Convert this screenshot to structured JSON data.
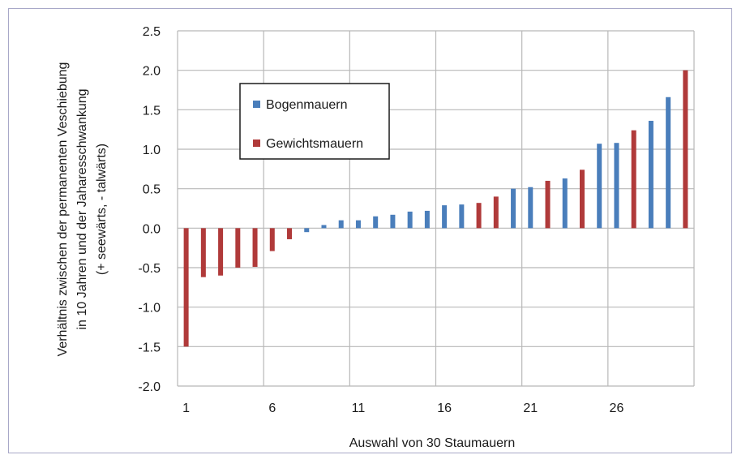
{
  "chart_data": {
    "type": "bar",
    "title": "",
    "xlabel": "Auswahl von 30 Staumauern",
    "ylabel_lines": [
      "Verhältnis zwischen der permanenten Veschiebung",
      "in 10 Jahren und der Jaharesschwankung",
      "(+ seewärts, - talwärts)"
    ],
    "xlim": [
      0,
      30
    ],
    "ylim": [
      -2.0,
      2.5
    ],
    "y_ticks": [
      "2.5",
      "2.0",
      "1.5",
      "1.0",
      "0.5",
      "0.0",
      "-0.5",
      "-1.0",
      "-1.5",
      "-2.0"
    ],
    "x_ticks": [
      "1",
      "6",
      "11",
      "16",
      "21",
      "26"
    ],
    "grid": true,
    "legend_position": "upper-left inside plot",
    "colors": {
      "Bogenmauern": "#4a7ebb",
      "Gewichtsmauern": "#b03a3a"
    },
    "legend": [
      "Bogenmauern",
      "Gewichtsmauern"
    ],
    "bars": [
      {
        "x": 1,
        "value": -1.5,
        "series": "Gewichtsmauern"
      },
      {
        "x": 2,
        "value": -0.62,
        "series": "Gewichtsmauern"
      },
      {
        "x": 3,
        "value": -0.6,
        "series": "Gewichtsmauern"
      },
      {
        "x": 4,
        "value": -0.5,
        "series": "Gewichtsmauern"
      },
      {
        "x": 5,
        "value": -0.49,
        "series": "Gewichtsmauern"
      },
      {
        "x": 6,
        "value": -0.29,
        "series": "Gewichtsmauern"
      },
      {
        "x": 7,
        "value": -0.14,
        "series": "Gewichtsmauern"
      },
      {
        "x": 8,
        "value": -0.05,
        "series": "Bogenmauern"
      },
      {
        "x": 9,
        "value": 0.04,
        "series": "Bogenmauern"
      },
      {
        "x": 10,
        "value": 0.1,
        "series": "Bogenmauern"
      },
      {
        "x": 11,
        "value": 0.1,
        "series": "Bogenmauern"
      },
      {
        "x": 12,
        "value": 0.15,
        "series": "Bogenmauern"
      },
      {
        "x": 13,
        "value": 0.17,
        "series": "Bogenmauern"
      },
      {
        "x": 14,
        "value": 0.21,
        "series": "Bogenmauern"
      },
      {
        "x": 15,
        "value": 0.22,
        "series": "Bogenmauern"
      },
      {
        "x": 16,
        "value": 0.29,
        "series": "Bogenmauern"
      },
      {
        "x": 17,
        "value": 0.3,
        "series": "Bogenmauern"
      },
      {
        "x": 18,
        "value": 0.32,
        "series": "Gewichtsmauern"
      },
      {
        "x": 19,
        "value": 0.4,
        "series": "Gewichtsmauern"
      },
      {
        "x": 20,
        "value": 0.5,
        "series": "Bogenmauern"
      },
      {
        "x": 21,
        "value": 0.52,
        "series": "Bogenmauern"
      },
      {
        "x": 22,
        "value": 0.6,
        "series": "Gewichtsmauern"
      },
      {
        "x": 23,
        "value": 0.63,
        "series": "Bogenmauern"
      },
      {
        "x": 24,
        "value": 0.74,
        "series": "Gewichtsmauern"
      },
      {
        "x": 25,
        "value": 1.07,
        "series": "Bogenmauern"
      },
      {
        "x": 26,
        "value": 1.08,
        "series": "Bogenmauern"
      },
      {
        "x": 27,
        "value": 1.24,
        "series": "Gewichtsmauern"
      },
      {
        "x": 28,
        "value": 1.36,
        "series": "Bogenmauern"
      },
      {
        "x": 29,
        "value": 1.66,
        "series": "Bogenmauern"
      },
      {
        "x": 30,
        "value": 2.0,
        "series": "Gewichtsmauern"
      }
    ]
  }
}
